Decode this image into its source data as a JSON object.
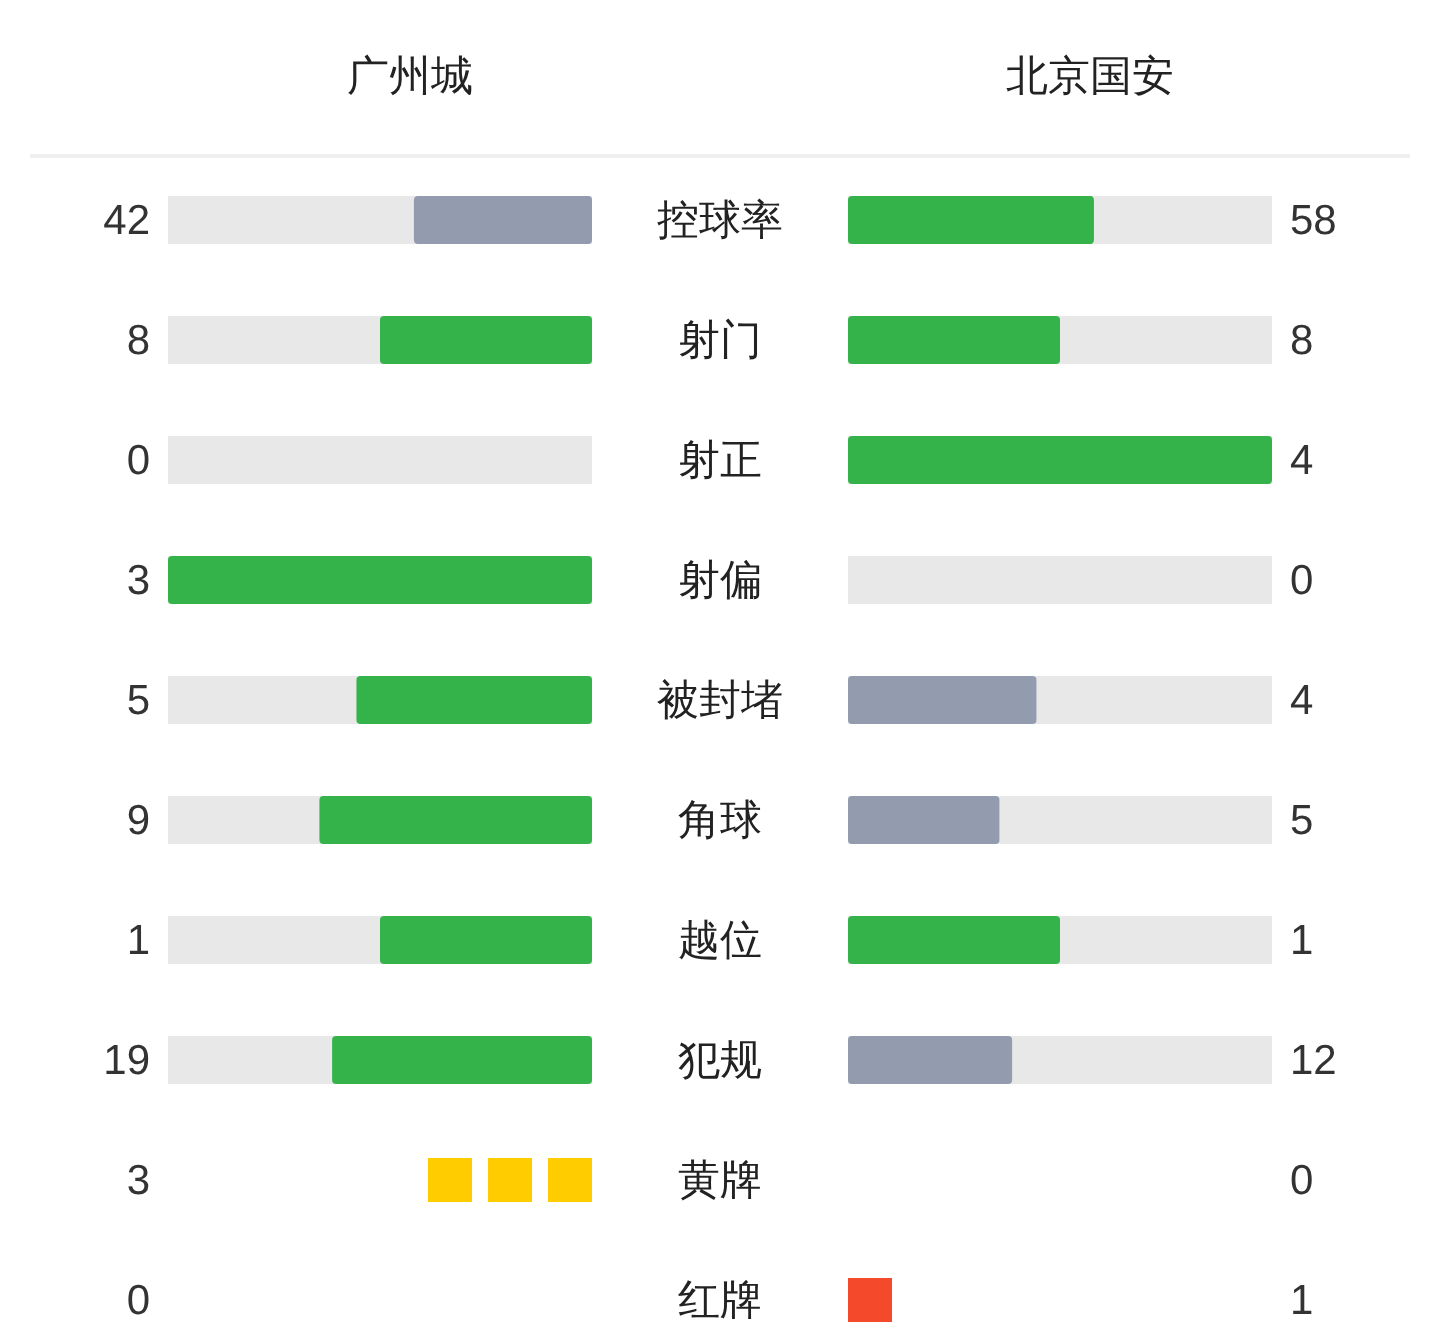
{
  "chart_data": [
    {
      "type": "other",
      "categories": [
        "控球率",
        "射门",
        "射正",
        "射偏",
        "被封堵",
        "角球",
        "越位",
        "犯规"
      ],
      "series": [
        {
          "name": "广州城",
          "colors": [
            "#939cae",
            "#33b34a",
            "#939cae",
            "#33b34a",
            "#33b34a",
            "#33b34a",
            "#33b34a",
            "#33b34a"
          ],
          "values": [
            42,
            8,
            0,
            3,
            5,
            9,
            1,
            19
          ]
        },
        {
          "name": "北京国安",
          "colors": [
            "#33b34a",
            "#33b34a",
            "#33b34a",
            "#939cae",
            "#939cae",
            "#939cae",
            "#33b34a",
            "#939cae"
          ],
          "values": [
            58,
            8,
            4,
            0,
            4,
            5,
            1,
            12
          ]
        }
      ],
      "data_labels": true
    },
    {
      "type": "other",
      "categories": [
        "黄牌",
        "红牌"
      ],
      "series": [
        {
          "colors": [
            "#ffcc00",
            "#ffcc00"
          ],
          "values": [
            3,
            0
          ]
        },
        {
          "colors": [
            "#f4492a",
            "#f4492a"
          ],
          "values": [
            0,
            1
          ]
        }
      ],
      "data_labels": true
    }
  ]
}
